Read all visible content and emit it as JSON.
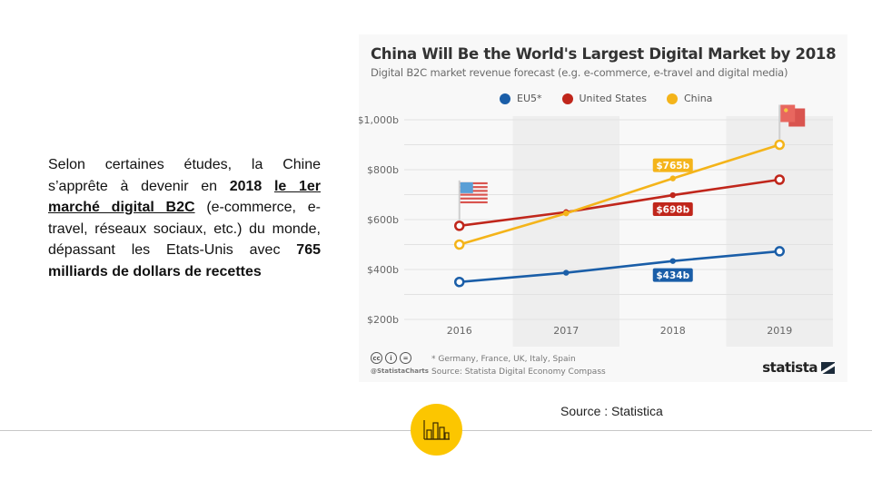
{
  "slide": {
    "paragraph": {
      "part1": "Selon certaines études, la Chine s’apprête à devenir en ",
      "bold_year": "2018",
      "space": " ",
      "bold_underline": "le 1er marché digital B2C",
      "part2": " (e-commerce, e-travel, réseaux sociaux, etc.) du monde, dépassant les Etats-Unis avec ",
      "bold_amount": "765 milliards de dollars de recettes"
    },
    "source_caption": "Source : Statistica",
    "badge_icon": "bar-chart-icon"
  },
  "card": {
    "footnote": "* Germany, France, UK, Italy, Spain",
    "source": "Source: Statista Digital Economy Compass",
    "handle": "@StatistaCharts",
    "brand": "statista",
    "license_icons": [
      "cc",
      "i",
      "="
    ]
  },
  "chart_data": {
    "type": "line",
    "title": "China Will Be the World's Largest Digital Market by 2018",
    "subtitle": "Digital B2C market revenue forecast (e.g. e-commerce, e-travel and digital media)",
    "xlabel": "",
    "ylabel": "",
    "x": [
      "2016",
      "2017",
      "2018",
      "2019"
    ],
    "ylim": [
      200,
      1000
    ],
    "yticks": [
      200,
      400,
      600,
      800,
      1000
    ],
    "ytick_labels": [
      "$200b",
      "$400b",
      "$600b",
      "$800b",
      "$1,000b"
    ],
    "grid": true,
    "legend_position": "top-center",
    "series": [
      {
        "name": "EU5*",
        "color": "#1a5ea8",
        "values": [
          350,
          387,
          434,
          473
        ],
        "label_index": 2,
        "label": "$434b",
        "label_pos": "below"
      },
      {
        "name": "United States",
        "color": "#c0261b",
        "values": [
          575,
          630,
          698,
          760
        ],
        "label_index": 2,
        "label": "$698b",
        "label_pos": "below"
      },
      {
        "name": "China",
        "color": "#f4b41a",
        "values": [
          500,
          625,
          765,
          900
        ],
        "label_index": 2,
        "label": "$765b",
        "label_pos": "above"
      }
    ],
    "annotations": [
      {
        "type": "flag",
        "icon": "us-flag-icon",
        "x": "2016",
        "series": "United States"
      },
      {
        "type": "flag",
        "icon": "china-flag-icon",
        "x": "2019",
        "series": "China"
      }
    ]
  }
}
